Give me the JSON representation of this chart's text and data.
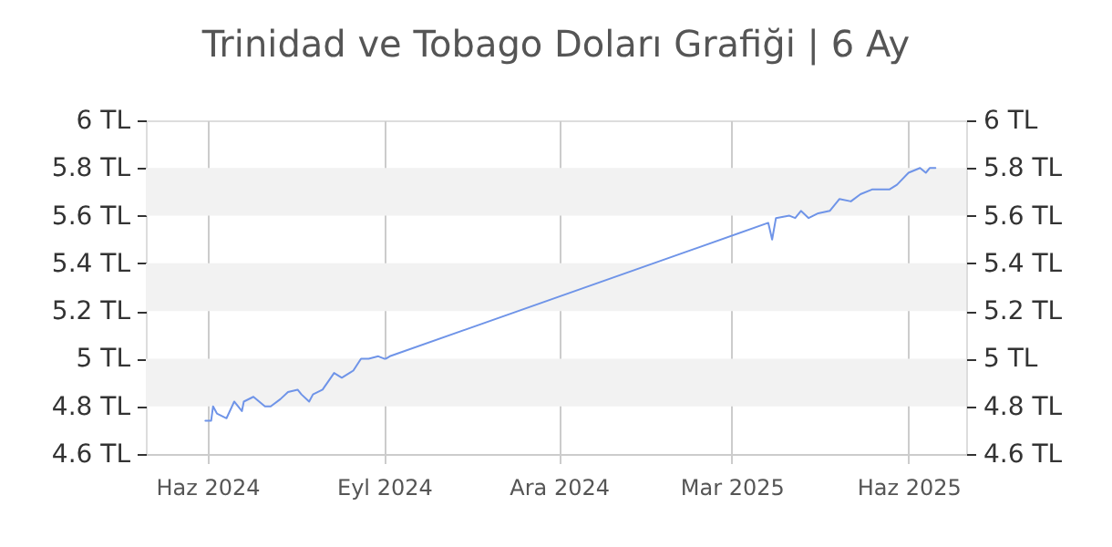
{
  "chart_data": {
    "type": "line",
    "title": "Trinidad ve Tobago Doları Grafiği | 6 Ay",
    "x": [
      "2024-05-31",
      "2024-06-03",
      "2024-06-04",
      "2024-06-06",
      "2024-06-11",
      "2024-06-15",
      "2024-06-19",
      "2024-06-20",
      "2024-06-25",
      "2024-07-01",
      "2024-07-04",
      "2024-07-09",
      "2024-07-13",
      "2024-07-18",
      "2024-07-20",
      "2024-07-24",
      "2024-07-26",
      "2024-07-31",
      "2024-08-06",
      "2024-08-10",
      "2024-08-14",
      "2024-08-16",
      "2024-08-20",
      "2024-08-24",
      "2024-08-29",
      "2024-09-01",
      "2024-09-02",
      "2024-09-04",
      "2025-03-20",
      "2025-03-22",
      "2025-03-24",
      "2025-03-31",
      "2025-04-03",
      "2025-04-06",
      "2025-04-10",
      "2025-04-15",
      "2025-04-21",
      "2025-04-26",
      "2025-05-02",
      "2025-05-07",
      "2025-05-13",
      "2025-05-16",
      "2025-05-22",
      "2025-05-26",
      "2025-06-01",
      "2025-06-07",
      "2025-06-10",
      "2025-06-12",
      "2025-06-15"
    ],
    "series": [
      {
        "color": "#6f94e8",
        "values": [
          4.74,
          4.74,
          4.8,
          4.77,
          4.75,
          4.82,
          4.78,
          4.82,
          4.84,
          4.8,
          4.8,
          4.83,
          4.86,
          4.87,
          4.85,
          4.82,
          4.85,
          4.87,
          4.94,
          4.92,
          4.94,
          4.95,
          5.0,
          5.0,
          5.01,
          5.0,
          5.0,
          5.01,
          5.57,
          5.5,
          5.59,
          5.6,
          5.59,
          5.62,
          5.59,
          5.61,
          5.62,
          5.67,
          5.66,
          5.69,
          5.71,
          5.71,
          5.71,
          5.73,
          5.78,
          5.8,
          5.78,
          5.8,
          5.8
        ]
      }
    ],
    "xlim": [
      "2024-04-30",
      "2025-07-01"
    ],
    "xticks": [
      {
        "value": "2024-06-01",
        "label": "Haz 2024"
      },
      {
        "value": "2024-09-01",
        "label": "Eyl 2024"
      },
      {
        "value": "2024-12-01",
        "label": "Ara 2024"
      },
      {
        "value": "2025-03-01",
        "label": "Mar 2025"
      },
      {
        "value": "2025-06-01",
        "label": "Haz 2025"
      }
    ],
    "ylim": [
      4.6,
      6
    ],
    "yticks": [
      {
        "value": 4.6,
        "label": "4.6 TL"
      },
      {
        "value": 4.8,
        "label": "4.8 TL"
      },
      {
        "value": 5,
        "label": "5 TL"
      },
      {
        "value": 5.2,
        "label": "5.2 TL"
      },
      {
        "value": 5.4,
        "label": "5.4 TL"
      },
      {
        "value": 5.6,
        "label": "5.6 TL"
      },
      {
        "value": 5.8,
        "label": "5.8 TL"
      },
      {
        "value": 6,
        "label": "6 TL"
      }
    ],
    "y2lim": [
      4.6,
      6
    ],
    "y2ticks": [
      {
        "value": 4.6,
        "label": "4.6 TL"
      },
      {
        "value": 4.8,
        "label": "4.8 TL"
      },
      {
        "value": 5,
        "label": "5 TL"
      },
      {
        "value": 5.2,
        "label": "5.2 TL"
      },
      {
        "value": 5.4,
        "label": "5.4 TL"
      },
      {
        "value": 5.6,
        "label": "5.6 TL"
      },
      {
        "value": 5.8,
        "label": "5.8 TL"
      },
      {
        "value": 6,
        "label": "6 TL"
      }
    ],
    "bands": [
      {
        "axis": "y",
        "from": 4.8,
        "to": 5,
        "color": "#f2f2f2"
      },
      {
        "axis": "y",
        "from": 5.2,
        "to": 5.4,
        "color": "#f2f2f2"
      },
      {
        "axis": "y",
        "from": 5.6,
        "to": 5.8,
        "color": "#f2f2f2"
      }
    ],
    "grid": "x",
    "marker": "none",
    "line_style": "solid"
  }
}
